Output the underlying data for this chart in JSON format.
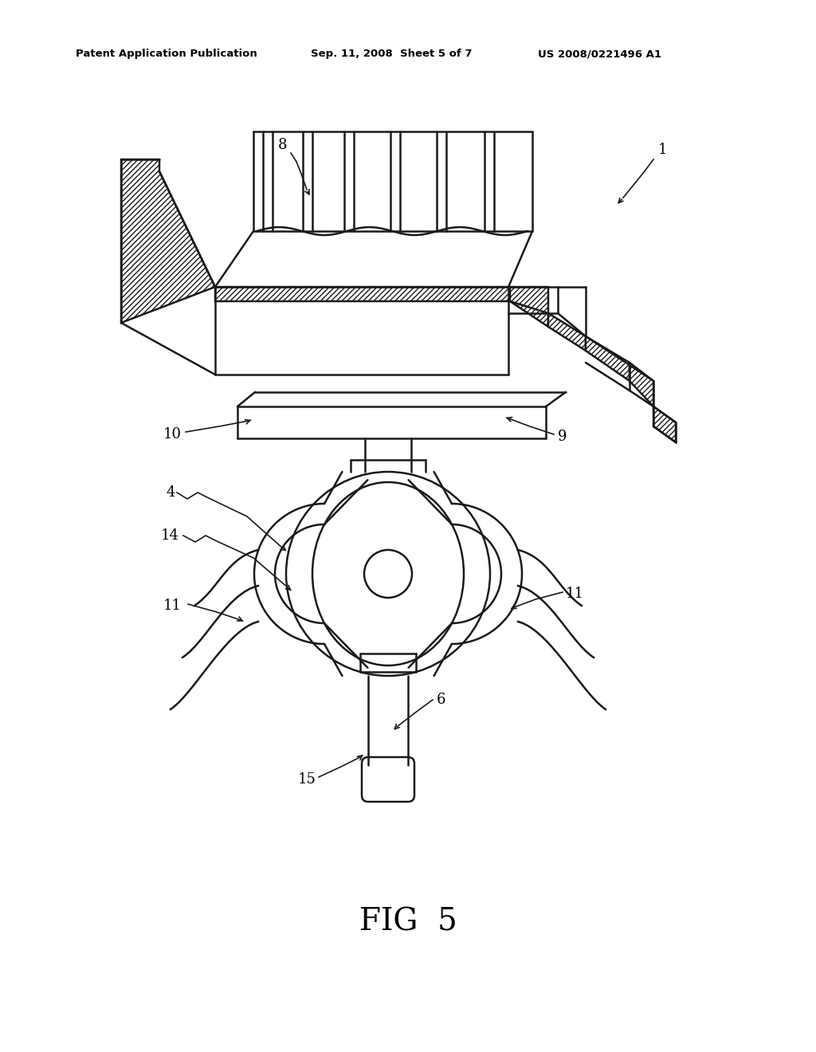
{
  "bg_color": "#ffffff",
  "line_color": "#1a1a1a",
  "header_left": "Patent Application Publication",
  "header_mid": "Sep. 11, 2008  Sheet 5 of 7",
  "header_right": "US 2008/0221496 A1",
  "fig_label": "FIG  5"
}
